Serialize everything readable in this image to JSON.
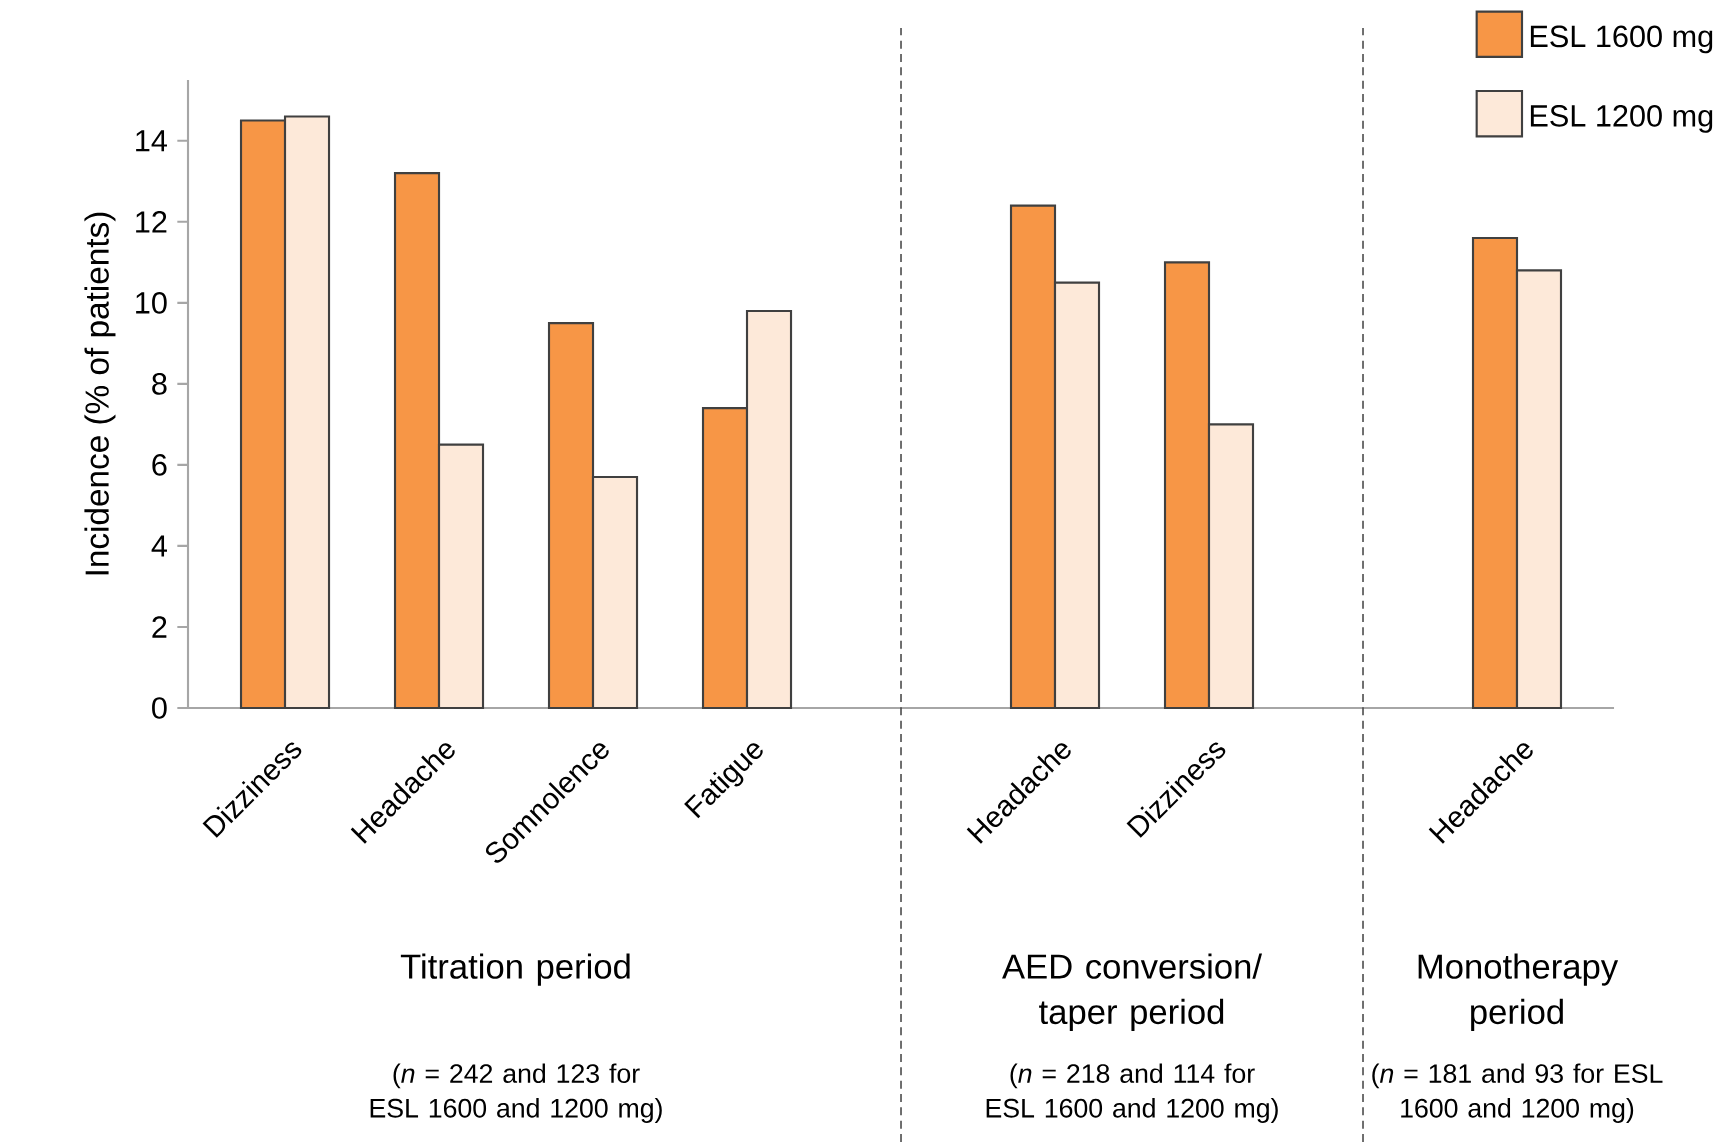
{
  "chart_data": {
    "type": "bar",
    "categories": [
      "Dizziness",
      "Headache",
      "Somnolence",
      "Fatigue",
      null,
      "Headache",
      "Dizziness",
      null,
      "Headache"
    ],
    "ylabel": "Incidence (% of patients)",
    "series": [
      {
        "name": "ESL 1600 mg",
        "color": "#f79646",
        "values": [
          14.5,
          13.2,
          9.5,
          7.4,
          null,
          12.4,
          11.0,
          null,
          11.6
        ]
      },
      {
        "name": "ESL 1200 mg",
        "color": "#fde9d9",
        "values": [
          14.6,
          6.5,
          5.7,
          9.8,
          null,
          10.5,
          7.0,
          null,
          10.8
        ]
      }
    ],
    "ylim": [
      0,
      15.5
    ],
    "yticks": [
      0,
      2,
      4,
      6,
      8,
      10,
      12,
      14
    ],
    "legend": "top right",
    "annotations": [
      "Titration period",
      "(*n* = 242 and 123 for ESL 1600 and 1200 mg)",
      "AED conversion/ taper period",
      "(*n* = 218 and 114 for ESL 1600 and 1200 mg)",
      "Monotherapy period",
      "(*n* = 181 and 93 for ESL 1600 and 1200 mg)"
    ]
  }
}
